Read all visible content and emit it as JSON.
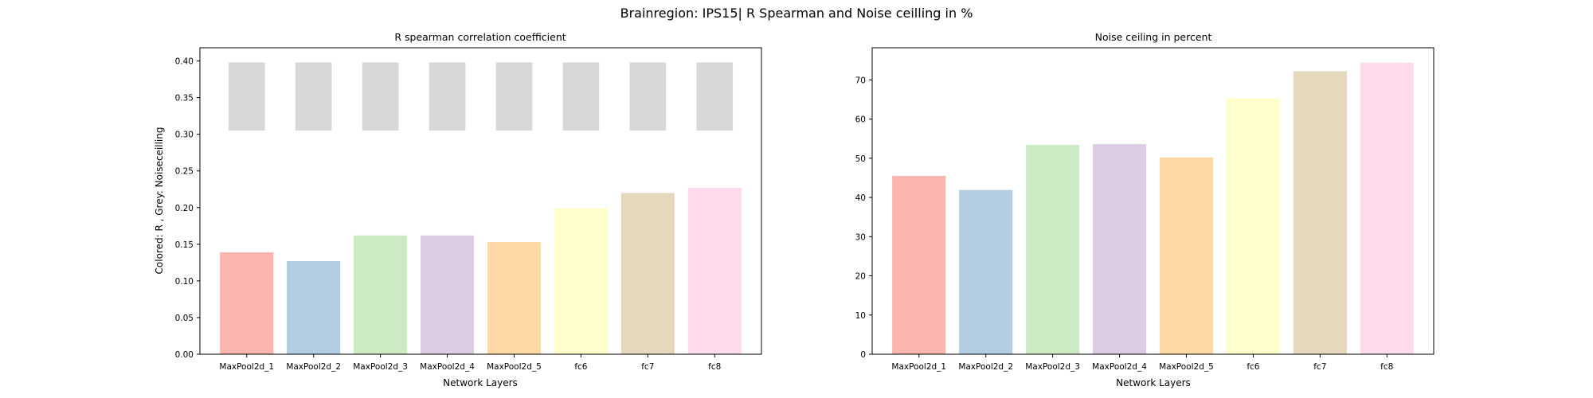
{
  "figure": {
    "suptitle": "Brainregion: IPS15| R Spearman and Noise ceilling in %"
  },
  "chart_data": [
    {
      "type": "bar",
      "title": "R spearman correlation coefficient",
      "xlabel": "Network Layers",
      "ylabel": "Colored: R , Grey: Noiseceilling",
      "categories": [
        "MaxPool2d_1",
        "MaxPool2d_2",
        "MaxPool2d_3",
        "MaxPool2d_4",
        "MaxPool2d_5",
        "fc6",
        "fc7",
        "fc8"
      ],
      "series": [
        {
          "name": "R",
          "values": [
            0.139,
            0.127,
            0.162,
            0.162,
            0.153,
            0.199,
            0.22,
            0.227
          ]
        },
        {
          "name": "Noiseceilling",
          "type": "floating",
          "lower": [
            0.305,
            0.305,
            0.305,
            0.305,
            0.305,
            0.305,
            0.305,
            0.305
          ],
          "upper": [
            0.398,
            0.398,
            0.398,
            0.398,
            0.398,
            0.398,
            0.398,
            0.398
          ],
          "color": "#d8d8d8"
        }
      ],
      "ylim": [
        0,
        0.418
      ],
      "yticks": [
        "0.00",
        "0.05",
        "0.10",
        "0.15",
        "0.20",
        "0.25",
        "0.30",
        "0.35",
        "0.40"
      ],
      "ytick_values": [
        0,
        0.05,
        0.1,
        0.15,
        0.2,
        0.25,
        0.3,
        0.35,
        0.4
      ],
      "colors": [
        "#fbb4ae",
        "#b3cde3",
        "#ccebc5",
        "#decbe4",
        "#fed9a6",
        "#ffffcc",
        "#e5d8bd",
        "#fddaec"
      ],
      "grid": false
    },
    {
      "type": "bar",
      "title": "Noise ceiling in percent",
      "xlabel": "Network Layers",
      "ylabel": "",
      "categories": [
        "MaxPool2d_1",
        "MaxPool2d_2",
        "MaxPool2d_3",
        "MaxPool2d_4",
        "MaxPool2d_5",
        "fc6",
        "fc7",
        "fc8"
      ],
      "series": [
        {
          "name": "Noise ceiling %",
          "values": [
            45.5,
            41.9,
            53.4,
            53.6,
            50.2,
            65.3,
            72.2,
            74.4
          ]
        }
      ],
      "ylim": [
        0,
        78.2
      ],
      "yticks": [
        "0",
        "10",
        "20",
        "30",
        "40",
        "50",
        "60",
        "70"
      ],
      "ytick_values": [
        0,
        10,
        20,
        30,
        40,
        50,
        60,
        70
      ],
      "colors": [
        "#fbb4ae",
        "#b3cde3",
        "#ccebc5",
        "#decbe4",
        "#fed9a6",
        "#ffffcc",
        "#e5d8bd",
        "#fddaec"
      ],
      "grid": false
    }
  ]
}
